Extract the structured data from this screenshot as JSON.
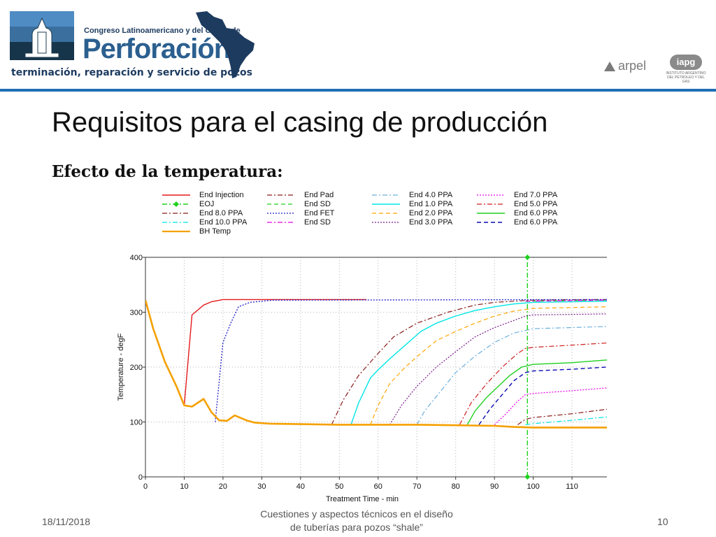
{
  "header": {
    "congreso": "Congreso Latinoamericano y del Caribe de",
    "perforacion": "Perforación",
    "tagline": "terminación, reparación y servicio de pozos",
    "arpel": "arpel",
    "iapg": "iapg",
    "iapg_sub1": "INSTITUTO ARGENTINO",
    "iapg_sub2": "DEL PETROLEO Y DEL GAS",
    "colors": {
      "rule": "#1f6fb5",
      "brand_dark": "#1d3b5f",
      "brand_blue": "#2b5f8f"
    }
  },
  "slide": {
    "title": "Requisitos para el casing de producción",
    "subtitle": "Efecto de la temperatura:"
  },
  "footer": {
    "date": "18/11/2018",
    "center_line1": "Cuestiones y aspectos técnicos en el diseño",
    "center_line2": "de tuberías para pozos “shale”",
    "page": "10"
  },
  "chart_data": {
    "type": "line",
    "xlabel": "Treatment Time - min",
    "ylabel": "Temperature - degF",
    "xlim": [
      0,
      119
    ],
    "ylim": [
      0,
      400
    ],
    "xticks": [
      0,
      10,
      20,
      30,
      40,
      50,
      60,
      70,
      80,
      90,
      100,
      110
    ],
    "yticks": [
      0,
      100,
      200,
      300,
      400
    ],
    "grid": true,
    "legend_position": "top",
    "series": [
      {
        "name": "End Injection",
        "color": "#e31a1c",
        "dash": "solid",
        "width": 1.4,
        "x": [
          10,
          12,
          15,
          17,
          20,
          57
        ],
        "y": [
          130,
          295,
          313,
          319,
          323,
          323
        ]
      },
      {
        "name": "End Pad",
        "color": "#8b1a1a",
        "dash": "dashdot",
        "width": 1.2,
        "x": [
          48,
          51,
          55,
          60,
          64,
          70,
          78,
          85,
          90,
          95,
          100,
          119
        ],
        "y": [
          95,
          140,
          185,
          225,
          255,
          280,
          300,
          313,
          318,
          320,
          322,
          323
        ]
      },
      {
        "name": "End 4.0 PPA",
        "color": "#6ab0de",
        "dash": "dashdot",
        "width": 1.2,
        "x": [
          70,
          72,
          76,
          80,
          85,
          90,
          95,
          100,
          110,
          119
        ],
        "y": [
          95,
          120,
          155,
          190,
          220,
          245,
          262,
          270,
          272,
          274
        ]
      },
      {
        "name": "End 7.0 PPA",
        "color": "#e600e6",
        "dash": "dot",
        "width": 1.2,
        "x": [
          90,
          93,
          96,
          98,
          100,
          110,
          119
        ],
        "y": [
          95,
          115,
          138,
          150,
          152,
          157,
          162
        ]
      },
      {
        "name": "EOJ",
        "color": "#1fd11f",
        "dash": "dashdot",
        "width": 1.4,
        "marker": "diamond",
        "x": [
          98.5,
          98.5
        ],
        "y": [
          0,
          400
        ]
      },
      {
        "name": "End SD",
        "color": "#1fd11f",
        "dash": "dash",
        "width": 1.2,
        "x": [
          98,
          119
        ],
        "y": [
          320,
          322
        ]
      },
      {
        "name": "End 1.0 PPA",
        "color": "#00e5e5",
        "dash": "solid",
        "width": 1.4,
        "x": [
          53,
          55,
          58,
          60,
          63,
          67,
          71,
          75,
          80,
          85,
          90,
          95,
          100,
          119
        ],
        "y": [
          95,
          135,
          180,
          195,
          215,
          240,
          265,
          280,
          293,
          303,
          310,
          315,
          318,
          320
        ]
      },
      {
        "name": "End 5.0 PPA",
        "color": "#d11f1f",
        "dash": "dashdot",
        "width": 1.2,
        "x": [
          81,
          84,
          88,
          92,
          96,
          98,
          100,
          110,
          119
        ],
        "y": [
          95,
          135,
          170,
          200,
          225,
          234,
          236,
          240,
          244
        ]
      },
      {
        "name": "End 8.0 PPA",
        "color": "#8b1a1a",
        "dash": "dashdot",
        "width": 1.2,
        "x": [
          96,
          98,
          100,
          110,
          119
        ],
        "y": [
          95,
          105,
          108,
          115,
          123
        ]
      },
      {
        "name": "End FET",
        "color": "#1f1fc9",
        "dash": "dot",
        "width": 1.3,
        "x": [
          18,
          20,
          22,
          24,
          27,
          30,
          33,
          37,
          119
        ],
        "y": [
          100,
          245,
          280,
          310,
          318,
          320,
          322,
          322,
          323
        ]
      },
      {
        "name": "End 2.0 PPA",
        "color": "#ffa500",
        "dash": "dash",
        "width": 1.2,
        "x": [
          58,
          60,
          63,
          67,
          71,
          75,
          80,
          85,
          90,
          95,
          100,
          119
        ],
        "y": [
          95,
          130,
          170,
          200,
          225,
          248,
          265,
          280,
          293,
          302,
          307,
          310
        ]
      },
      {
        "name": "End 6.0 PPA",
        "color": "#1fd11f",
        "dash": "solid",
        "width": 1.4,
        "x": [
          83,
          85,
          88,
          91,
          94,
          97,
          100,
          110,
          119
        ],
        "y": [
          95,
          120,
          145,
          165,
          185,
          200,
          205,
          208,
          213
        ]
      },
      {
        "name": "End 10.0 PPA",
        "color": "#00e5e5",
        "dash": "dashdot",
        "width": 1.2,
        "x": [
          98,
          100,
          110,
          119
        ],
        "y": [
          95,
          97,
          103,
          109
        ]
      },
      {
        "name": "End SD",
        "color": "#e600e6",
        "dash": "dashdot",
        "width": 1.2,
        "x": [
          98,
          119
        ],
        "y": [
          320,
          322
        ]
      },
      {
        "name": "End 3.0 PPA",
        "color": "#7a1a8a",
        "dash": "dot",
        "width": 1.2,
        "x": [
          63,
          66,
          70,
          75,
          80,
          85,
          90,
          95,
          98,
          100,
          119
        ],
        "y": [
          95,
          130,
          165,
          200,
          228,
          255,
          272,
          285,
          293,
          295,
          297
        ]
      },
      {
        "name": "End 6.0 PPA",
        "color": "#0a0ab0",
        "dash": "dash",
        "width": 1.4,
        "x": [
          86,
          89,
          92,
          95,
          98,
          100,
          110,
          119
        ],
        "y": [
          95,
          125,
          150,
          175,
          190,
          193,
          196,
          200
        ]
      },
      {
        "name": "BH Temp",
        "color": "#f5a000",
        "dash": "solid",
        "width": 2.6,
        "x": [
          0,
          2,
          5,
          8,
          10,
          12,
          15,
          17,
          19,
          21,
          23,
          26,
          28,
          32,
          40,
          50,
          60,
          70,
          80,
          90,
          95,
          100,
          119
        ],
        "y": [
          322,
          270,
          210,
          165,
          130,
          128,
          142,
          118,
          103,
          102,
          112,
          103,
          99,
          97,
          96,
          95,
          95,
          95,
          94,
          93,
          91,
          90,
          90
        ]
      }
    ]
  }
}
